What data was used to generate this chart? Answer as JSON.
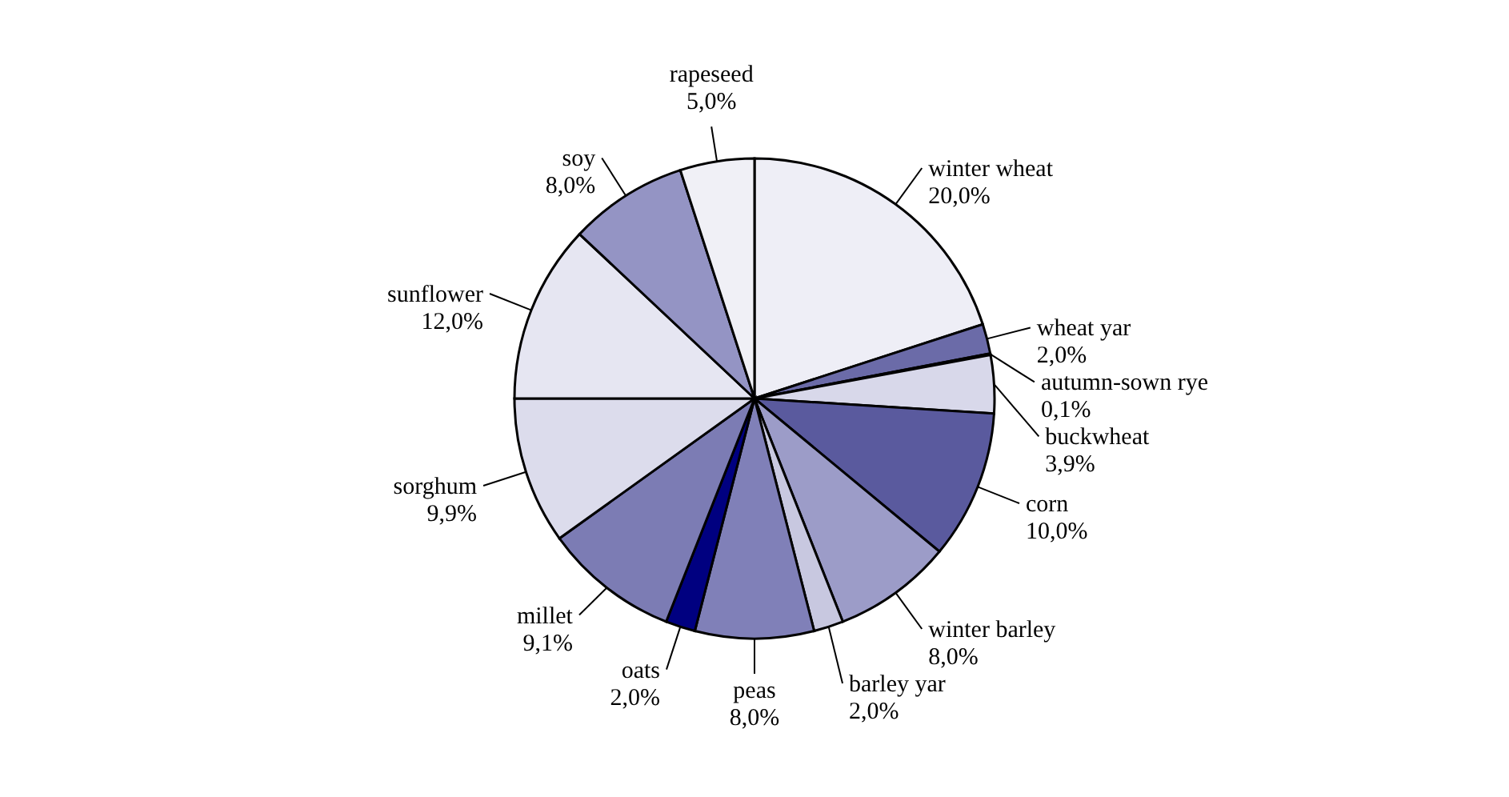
{
  "chart_data": {
    "type": "pie",
    "categories": [
      "winter wheat",
      "wheat yar",
      "autumn-sown rye",
      "buckwheat",
      "corn",
      "winter barley",
      "barley yar",
      "peas",
      "oats",
      "millet",
      "sorghum",
      "sunflower",
      "soy",
      "rapeseed"
    ],
    "values": [
      20.0,
      2.0,
      0.1,
      3.9,
      10.0,
      8.0,
      2.0,
      8.0,
      2.0,
      9.1,
      9.9,
      12.0,
      8.0,
      5.0
    ],
    "value_labels": [
      "20,0%",
      "2,0%",
      "0,1%",
      "3,9%",
      "10,0%",
      "8,0%",
      "2,0%",
      "8,0%",
      "2,0%",
      "9,1%",
      "9,9%",
      "12,0%",
      "8,0%",
      "5,0%"
    ],
    "colors": [
      "#eeeef6",
      "#6b6ba8",
      "#4a4a90",
      "#d8d8ea",
      "#5a5a9e",
      "#9c9cc8",
      "#c8c8e0",
      "#8080b8",
      "#000080",
      "#7c7cb4",
      "#dcdcec",
      "#e6e6f2",
      "#9494c4",
      "#f0f0f6"
    ]
  }
}
